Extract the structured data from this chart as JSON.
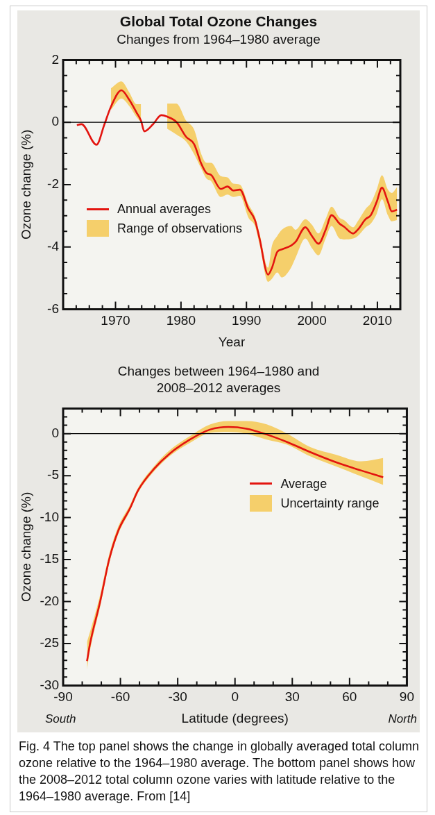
{
  "chart_data": [
    {
      "type": "line",
      "title": "Global Total Ozone Changes",
      "subtitle": "Changes from 1964–1980 average",
      "xlabel": "Year",
      "ylabel": "Ozone change (%)",
      "xlim": [
        1962,
        2013.5
      ],
      "ylim": [
        -6,
        2
      ],
      "xticks": [
        {
          "value": 1964,
          "label": null
        },
        {
          "value": 1966,
          "label": null
        },
        {
          "value": 1968,
          "label": null
        },
        1970,
        {
          "value": 1972,
          "label": null
        },
        {
          "value": 1974,
          "label": null
        },
        {
          "value": 1976,
          "label": null
        },
        {
          "value": 1978,
          "label": null
        },
        1980,
        {
          "value": 1982,
          "label": null
        },
        {
          "value": 1984,
          "label": null
        },
        {
          "value": 1986,
          "label": null
        },
        {
          "value": 1988,
          "label": null
        },
        1990,
        {
          "value": 1992,
          "label": null
        },
        {
          "value": 1994,
          "label": null
        },
        {
          "value": 1996,
          "label": null
        },
        {
          "value": 1998,
          "label": null
        },
        2000,
        {
          "value": 2002,
          "label": null
        },
        {
          "value": 2004,
          "label": null
        },
        {
          "value": 2006,
          "label": null
        },
        {
          "value": 2008,
          "label": null
        },
        2010,
        {
          "value": 2012,
          "label": null
        }
      ],
      "yticks": [
        -6,
        {
          "value": -5.5,
          "label": null
        },
        {
          "value": -5,
          "label": null
        },
        {
          "value": -4.5,
          "label": null
        },
        -4,
        {
          "value": -3.5,
          "label": null
        },
        {
          "value": -3,
          "label": null
        },
        {
          "value": -2.5,
          "label": null
        },
        -2,
        {
          "value": -1.5,
          "label": null
        },
        {
          "value": -1,
          "label": null
        },
        {
          "value": -0.5,
          "label": null
        },
        0,
        {
          "value": 0.5,
          "label": null
        },
        {
          "value": 1,
          "label": null
        },
        {
          "value": 1.5,
          "label": null
        },
        2
      ],
      "legend": "bottom left",
      "ref_lines": [
        {
          "axis": "y",
          "value": 0,
          "color": "#000000"
        }
      ],
      "series": [
        {
          "name": "Annual averages",
          "color": "#e3140f",
          "x": [
            1964.1,
            1964.8,
            1967.1,
            1968.3,
            1969.3,
            1970.9,
            1972.1,
            1973.2,
            1973.9,
            1974.4,
            1975.7,
            1977.0,
            1977.9,
            1979.3,
            1980.8,
            1982.0,
            1983.1,
            1983.9,
            1984.6,
            1986.1,
            1987.1,
            1988.0,
            1989.0,
            1990.3,
            1991.3,
            1992.0,
            1993.3,
            1993.9,
            1994.7,
            1995.4,
            1996.8,
            1997.5,
            1999.0,
            2000.0,
            2001.0,
            2002.1,
            2003.0,
            2004.2,
            2004.9,
            2006.3,
            2007.0,
            2008.2,
            2009.0,
            2009.9,
            2010.7,
            2011.6,
            2012.2,
            2013.0
          ],
          "values": [
            -0.09,
            -0.06,
            -0.72,
            -0.07,
            0.5,
            1.03,
            0.72,
            0.32,
            0.05,
            -0.29,
            -0.07,
            0.23,
            0.18,
            0.01,
            -0.47,
            -0.7,
            -1.33,
            -1.63,
            -1.69,
            -2.14,
            -2.06,
            -2.19,
            -2.16,
            -2.78,
            -3.14,
            -3.73,
            -4.89,
            -4.67,
            -4.16,
            -4.08,
            -3.96,
            -3.84,
            -3.37,
            -3.65,
            -3.9,
            -3.45,
            -2.98,
            -3.25,
            -3.35,
            -3.57,
            -3.45,
            -3.11,
            -2.98,
            -2.55,
            -2.1,
            -2.55,
            -2.86,
            -2.81
          ],
          "lower": [
            null,
            null,
            null,
            null,
            0.4,
            0.76,
            0.52,
            0.17,
            0.0,
            null,
            null,
            null,
            -0.21,
            -0.39,
            -0.62,
            -1.02,
            -1.49,
            -1.81,
            -1.89,
            -2.4,
            -2.32,
            -2.4,
            -2.36,
            -3.06,
            -3.33,
            -3.92,
            -5.12,
            -5.02,
            -4.82,
            -4.98,
            -4.67,
            -4.35,
            -3.73,
            -4.04,
            -4.27,
            -3.73,
            -3.33,
            -3.73,
            -3.76,
            -3.73,
            -3.65,
            -3.37,
            -3.25,
            -2.94,
            -2.47,
            -2.98,
            -3.18,
            -3.14
          ],
          "upper": [
            null,
            null,
            null,
            null,
            1.09,
            1.31,
            0.96,
            0.58,
            0.58,
            null,
            null,
            null,
            0.6,
            0.6,
            0.05,
            -0.23,
            -1.02,
            -1.3,
            -1.3,
            -1.73,
            -1.77,
            -1.97,
            -2.0,
            -2.63,
            -3.02,
            -3.57,
            -4.67,
            -3.96,
            -3.65,
            -3.45,
            -3.33,
            -3.45,
            -3.11,
            -3.29,
            -3.57,
            -3.1,
            -2.71,
            -3.06,
            -3.14,
            -3.37,
            -3.18,
            -2.78,
            -2.59,
            -2.16,
            -1.7,
            -2.16,
            -2.27,
            -2.08
          ]
        },
        {
          "name": "Range of observations",
          "color": "#f5cf6b"
        }
      ]
    },
    {
      "type": "line",
      "title": "Changes between 1964–1980 and 2008–2012 averages",
      "xlabel": "Latitude (degrees)",
      "ylabel": "Ozone change (%)",
      "xlim": [
        -90,
        90
      ],
      "ylim": [
        -30,
        3
      ],
      "xticks": [
        -90,
        {
          "value": -80,
          "label": null
        },
        {
          "value": -70,
          "label": null
        },
        -60,
        {
          "value": -50,
          "label": null
        },
        {
          "value": -40,
          "label": null
        },
        -30,
        {
          "value": -20,
          "label": null
        },
        {
          "value": -10,
          "label": null
        },
        0,
        {
          "value": 10,
          "label": null
        },
        {
          "value": 20,
          "label": null
        },
        30,
        {
          "value": 40,
          "label": null
        },
        {
          "value": 50,
          "label": null
        },
        60,
        {
          "value": 70,
          "label": null
        },
        {
          "value": 80,
          "label": null
        },
        90
      ],
      "yticks": [
        -30,
        {
          "value": -29,
          "label": null
        },
        {
          "value": -28,
          "label": null
        },
        {
          "value": -27,
          "label": null
        },
        {
          "value": -26,
          "label": null
        },
        -25,
        {
          "value": -24,
          "label": null
        },
        {
          "value": -23,
          "label": null
        },
        {
          "value": -22,
          "label": null
        },
        {
          "value": -21,
          "label": null
        },
        -20,
        {
          "value": -19,
          "label": null
        },
        {
          "value": -18,
          "label": null
        },
        {
          "value": -17,
          "label": null
        },
        {
          "value": -16,
          "label": null
        },
        -15,
        {
          "value": -14,
          "label": null
        },
        {
          "value": -13,
          "label": null
        },
        {
          "value": -12,
          "label": null
        },
        {
          "value": -11,
          "label": null
        },
        -10,
        {
          "value": -9,
          "label": null
        },
        {
          "value": -8,
          "label": null
        },
        {
          "value": -7,
          "label": null
        },
        {
          "value": -6,
          "label": null
        },
        -5,
        {
          "value": -4,
          "label": null
        },
        {
          "value": -3,
          "label": null
        },
        {
          "value": -2,
          "label": null
        },
        {
          "value": -1,
          "label": null
        },
        0,
        {
          "value": 1,
          "label": null
        },
        {
          "value": 2,
          "label": null
        }
      ],
      "legend": "right",
      "ref_lines": [
        {
          "axis": "y",
          "value": 0,
          "color": "#000000"
        }
      ],
      "annotations": [
        "South",
        "North",
        "Fig. 4 The top panel shows the change in globally averaged total column ozone relative to the 1964–1980 average. The bottom panel shows how the 2008–2012 total column ozone varies with latitude relative to the 1964–1980 average. From [14]"
      ],
      "series": [
        {
          "name": "Average",
          "color": "#e3140f",
          "x": [
            -77.5,
            -75.9,
            -70.6,
            -65.9,
            -61.2,
            -55.0,
            -50.6,
            -42.4,
            -34.3,
            -23.6,
            -12.9,
            -3.5,
            5.9,
            16.6,
            27.3,
            39.4,
            52.8,
            66.2,
            77.6
          ],
          "values": [
            -27.1,
            -25.0,
            -20.0,
            -15.0,
            -11.6,
            -8.9,
            -6.7,
            -4.2,
            -2.4,
            -0.7,
            0.5,
            0.8,
            0.6,
            -0.1,
            -1.0,
            -2.2,
            -3.4,
            -4.4,
            -5.2
          ],
          "lower": [
            -28.1,
            -25.8,
            -20.6,
            -15.5,
            -12.0,
            -9.2,
            -7.0,
            -4.5,
            -2.7,
            -1.1,
            0.1,
            0.2,
            0.0,
            -0.7,
            -1.3,
            -2.7,
            -3.9,
            -5.1,
            -6.1
          ],
          "upper": [
            -24.8,
            -23.6,
            -19.2,
            -14.4,
            -11.1,
            -8.5,
            -6.4,
            -3.9,
            -2.0,
            -0.3,
            1.1,
            1.5,
            1.5,
            1.1,
            0.0,
            -1.6,
            -2.5,
            -3.3,
            -2.9
          ]
        },
        {
          "name": "Uncertainty range",
          "color": "#f5cf6b"
        }
      ]
    }
  ]
}
